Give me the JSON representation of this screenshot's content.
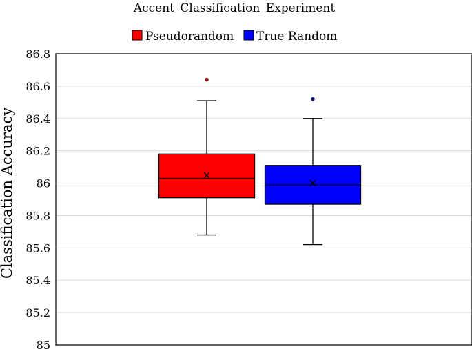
{
  "chart_data": {
    "type": "box",
    "title": "Accent Classification Experiment",
    "ylabel": "Classification Accuracy",
    "xlabel": "",
    "ylim": [
      85,
      86.8
    ],
    "yticks": [
      "85",
      "85.2",
      "85.4",
      "85.6",
      "85.8",
      "86",
      "86.2",
      "86.4",
      "86.6",
      "86.8"
    ],
    "grid": true,
    "legend_position": "top-center",
    "series": [
      {
        "name": "Pseudorandom",
        "color": "#ff0000",
        "outlier_color": "#8b1a1a",
        "min": 85.68,
        "q1": 85.91,
        "median": 86.03,
        "q3": 86.18,
        "max": 86.51,
        "mean": 86.05,
        "outliers": [
          86.64
        ]
      },
      {
        "name": "True Random",
        "color": "#0000ff",
        "outlier_color": "#1a1a7a",
        "min": 85.62,
        "q1": 85.87,
        "median": 85.99,
        "q3": 86.11,
        "max": 86.4,
        "mean": 86.0,
        "outliers": [
          86.52
        ]
      }
    ]
  }
}
